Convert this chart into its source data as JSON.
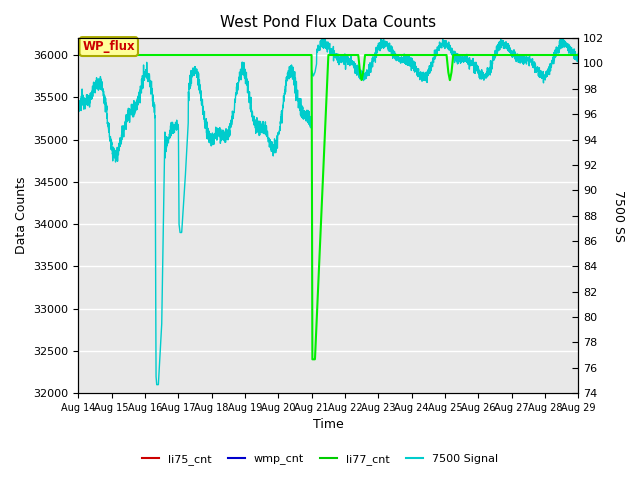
{
  "title": "West Pond Flux Data Counts",
  "xlabel": "Time",
  "ylabel_left": "Data Counts",
  "ylabel_right": "7500 SS",
  "ylim_left": [
    32000,
    36200
  ],
  "ylim_right": [
    74,
    102
  ],
  "x_tick_labels": [
    "Aug 14",
    "Aug 15",
    "Aug 16",
    "Aug 17",
    "Aug 18",
    "Aug 19",
    "Aug 20",
    "Aug 21",
    "Aug 22",
    "Aug 23",
    "Aug 24",
    "Aug 25",
    "Aug 26",
    "Aug 27",
    "Aug 28",
    "Aug 29"
  ],
  "legend_labels": [
    "li75_cnt",
    "wmp_cnt",
    "li77_cnt",
    "7500 Signal"
  ],
  "legend_colors": [
    "#cc0000",
    "#0000cc",
    "#00cc00",
    "#00cccc"
  ],
  "bg_color": "#e8e8e8",
  "grid_color": "#ffffff",
  "wp_flux_label_color": "#cc0000",
  "wp_flux_box_color": "#ffff99",
  "li77_color": "#00ee00",
  "signal_color": "#00cccc",
  "left_yticks": [
    32000,
    32500,
    33000,
    33500,
    34000,
    34500,
    35000,
    35500,
    36000
  ],
  "right_yticks": [
    74,
    76,
    78,
    80,
    82,
    84,
    86,
    88,
    90,
    92,
    94,
    96,
    98,
    100,
    102
  ]
}
